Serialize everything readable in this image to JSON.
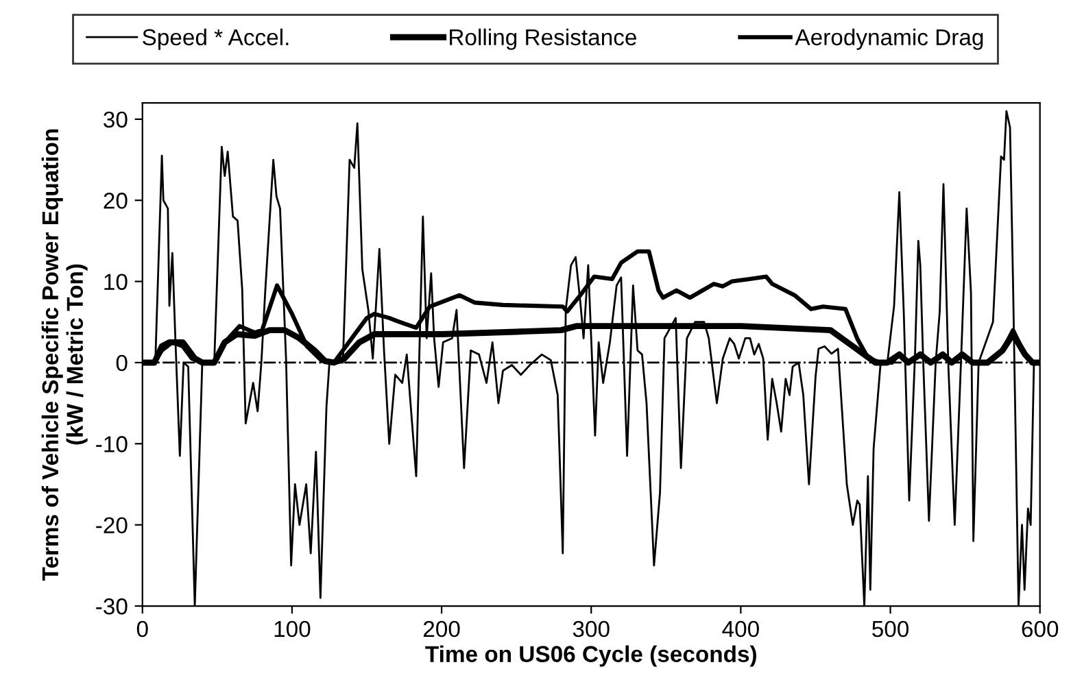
{
  "chart_data": {
    "type": "line",
    "xlabel": "Time on US06 Cycle (seconds)",
    "ylabel": "Terms of Vehicle Specific Power Equation\n(kW / Metric Ton)",
    "xlim": [
      0,
      600
    ],
    "xticks": [
      0,
      100,
      200,
      300,
      400,
      500,
      600
    ],
    "ylim": [
      -30,
      32
    ],
    "yticks": [
      -30,
      -20,
      -10,
      0,
      10,
      20,
      30
    ],
    "grid": false,
    "legend": "top",
    "marker": "none",
    "ref_lines": [
      {
        "axis": "y",
        "value": 0,
        "line_style": "dashdot",
        "color": "#000000"
      }
    ],
    "series": [
      {
        "name": "Speed * Accel.",
        "color": "#000000",
        "line_style": "solid",
        "x": [
          0,
          8.6,
          13,
          14,
          17,
          18,
          20,
          22,
          25,
          27.5,
          30.6,
          35,
          40,
          48,
          53,
          55,
          57,
          60.5,
          63.6,
          66.7,
          69,
          74,
          77,
          79.5,
          82,
          87.5,
          89.6,
          92,
          96,
          99.4,
          102,
          105,
          109.5,
          112.5,
          116,
          119,
          123,
          125,
          134,
          138.5,
          141.6,
          143.7,
          147,
          151,
          154,
          158.4,
          161.5,
          165,
          169,
          173.7,
          176.7,
          183,
          187.5,
          190,
          193,
          195,
          198,
          201,
          207,
          210,
          215,
          219.5,
          225,
          230,
          234,
          238,
          241,
          247,
          253,
          259,
          267,
          273,
          277.6,
          281,
          283,
          286.5,
          289.6,
          292.7,
          294.9,
          298,
          300,
          302.6,
          305,
          308,
          312.5,
          317,
          320,
          324,
          328,
          331,
          334,
          337,
          342,
          346,
          349,
          353.5,
          356.5,
          360,
          364,
          369.4,
          375.5,
          378.6,
          384,
          388,
          392.6,
          395.6,
          398.7,
          403,
          406.2,
          409,
          412,
          415,
          418,
          421,
          424,
          427,
          430,
          432.6,
          434.7,
          438.7,
          441.8,
          445.6,
          450,
          452,
          456,
          460.7,
          465,
          470.9,
          474.9,
          477.9,
          479.5,
          482.6,
          485,
          486.6,
          488.8,
          493.5,
          498,
          502.5,
          506,
          509,
          512.6,
          516.5,
          518.7,
          520,
          522,
          525.8,
          530.3,
          533,
          535.5,
          538.7,
          543,
          547.2,
          551,
          553.9,
          555.5,
          559,
          568.6,
          574,
          576,
          577.6,
          580,
          582,
          585.7,
          588,
          589.7,
          592,
          593.8,
          596,
          600
        ],
        "values": [
          0,
          0,
          25.5,
          20,
          19,
          7,
          13.5,
          3,
          -11.5,
          0,
          -0.5,
          -30,
          0,
          0,
          26.6,
          23,
          26,
          18,
          17.5,
          9,
          -7.5,
          -2.5,
          -6,
          0,
          8.5,
          25,
          20.5,
          19,
          0.5,
          -25,
          -15,
          -20,
          -15,
          -23.5,
          -11,
          -29,
          -5.5,
          0,
          0,
          25,
          24,
          29.5,
          11.5,
          6.5,
          0.5,
          14,
          1.5,
          -10,
          -1.5,
          -2.5,
          1,
          -14,
          18,
          3,
          11,
          3,
          -3,
          2.5,
          3,
          6.5,
          -13,
          1.5,
          1,
          -2.5,
          2.5,
          -5,
          -1,
          -0.3,
          -1.5,
          -0.3,
          1,
          0.3,
          -4,
          -23.5,
          6.5,
          12,
          13,
          7.5,
          3,
          12,
          3,
          -9,
          2.5,
          -2.5,
          2.5,
          9.5,
          10.5,
          -11.5,
          9.5,
          1.5,
          1,
          -5,
          -25,
          -16,
          3,
          4.5,
          5.5,
          -13,
          3,
          5,
          5,
          3,
          -5,
          0.5,
          3,
          2.3,
          0.5,
          3,
          3,
          1,
          2.3,
          0.5,
          -9.5,
          -2,
          -5,
          -8.5,
          -2,
          -4,
          -0.5,
          0,
          -4,
          -15,
          -1.7,
          1.7,
          2,
          1.1,
          1.7,
          -15,
          -20,
          -17,
          -17.5,
          -30,
          -14,
          -28,
          -10.6,
          0,
          0,
          7,
          21,
          6,
          -17,
          1,
          15,
          12,
          0,
          -19.5,
          0,
          6.3,
          22,
          0,
          -20,
          0,
          19,
          8.6,
          -22,
          0,
          5,
          25.4,
          25,
          31,
          29,
          10,
          -30,
          -20,
          -28,
          -18,
          -20,
          0,
          0
        ]
      },
      {
        "name": "Rolling Resistance",
        "color": "#000000",
        "line_style": "solid",
        "x": [
          0,
          8,
          13,
          18,
          27,
          35,
          40,
          48,
          55,
          63,
          75,
          85,
          95,
          105,
          115,
          122,
          128,
          135,
          145,
          155,
          200,
          250,
          280,
          290,
          300,
          350,
          400,
          460,
          475,
          490,
          498,
          506,
          512,
          520,
          527,
          535,
          541,
          548,
          555,
          565,
          575,
          582,
          590,
          595,
          600
        ],
        "values": [
          0,
          0,
          2,
          2.5,
          2.5,
          0.5,
          0,
          0,
          2.5,
          3.5,
          3.3,
          4,
          4,
          3,
          1.5,
          0.2,
          0,
          0.5,
          2.5,
          3.5,
          3.5,
          3.8,
          4,
          4.5,
          4.5,
          4.5,
          4.5,
          4,
          2,
          0,
          0,
          1,
          0,
          1,
          0,
          1,
          0,
          1,
          0,
          0,
          1.5,
          3.5,
          1,
          0,
          0
        ]
      },
      {
        "name": "Aerodynamic Drag",
        "color": "#000000",
        "line_style": "solid",
        "x": [
          0,
          8,
          13,
          20,
          27,
          33,
          40,
          48,
          55,
          65,
          75,
          80,
          90,
          100,
          110,
          120,
          128,
          140,
          150,
          155,
          165,
          170.6,
          183,
          192,
          212,
          222,
          241,
          281,
          284,
          292.7,
          302,
          314,
          320,
          331,
          338.6,
          345,
          348,
          357,
          366,
          382,
          388,
          394,
          406,
          417,
          421,
          436,
          447,
          455,
          470,
          478,
          485,
          493,
          501,
          506,
          512,
          520,
          527,
          535,
          541,
          548,
          555,
          565,
          575,
          582,
          590,
          595,
          600
        ],
        "values": [
          0,
          0,
          1.5,
          2.5,
          2,
          0.5,
          0,
          0,
          2.5,
          4.5,
          3.7,
          4,
          9.5,
          6,
          2,
          0.2,
          0,
          3,
          5.5,
          6,
          5.5,
          5.1,
          4.3,
          6.9,
          8.3,
          7.4,
          7.1,
          6.9,
          6.3,
          8.3,
          10.6,
          10.3,
          12.3,
          13.7,
          13.7,
          8.9,
          8,
          8.9,
          8,
          9.7,
          9.4,
          10,
          10.3,
          10.6,
          9.7,
          8.3,
          6.6,
          6.9,
          6.6,
          2.9,
          0.6,
          0,
          0,
          1.1,
          0,
          1.1,
          0,
          1.1,
          0,
          1.1,
          0,
          0,
          1.5,
          4,
          1,
          0,
          0
        ]
      }
    ]
  }
}
